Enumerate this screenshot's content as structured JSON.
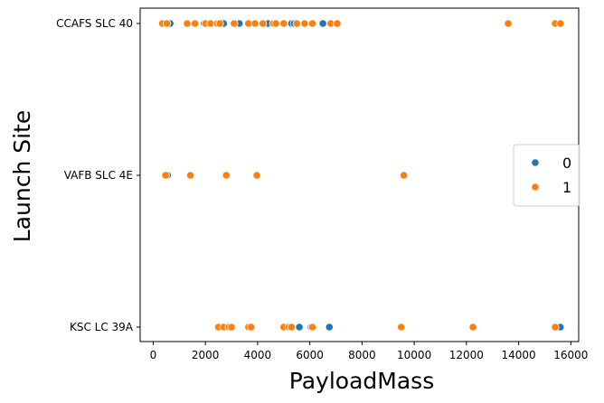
{
  "chart_data": {
    "type": "scatter",
    "title": "",
    "xlabel": "PayloadMass",
    "ylabel": "Launch Site",
    "xlim": [
      -500,
      16300
    ],
    "x_ticks": [
      0,
      2000,
      4000,
      6000,
      8000,
      10000,
      12000,
      14000,
      16000
    ],
    "categories": [
      "CCAFS SLC 40",
      "VAFB SLC 4E",
      "KSC LC 39A"
    ],
    "grid": false,
    "legend_placement": "center-right",
    "series": [
      {
        "name": "0",
        "color": "#1f77b4",
        "points": [
          {
            "x": 650,
            "y": "CCAFS SLC 40"
          },
          {
            "x": 1950,
            "y": "CCAFS SLC 40"
          },
          {
            "x": 2700,
            "y": "CCAFS SLC 40"
          },
          {
            "x": 3300,
            "y": "CCAFS SLC 40"
          },
          {
            "x": 4400,
            "y": "CCAFS SLC 40"
          },
          {
            "x": 5300,
            "y": "CCAFS SLC 40"
          },
          {
            "x": 5400,
            "y": "CCAFS SLC 40"
          },
          {
            "x": 6500,
            "y": "CCAFS SLC 40"
          },
          {
            "x": 550,
            "y": "VAFB SLC 4E"
          },
          {
            "x": 5600,
            "y": "KSC LC 39A"
          },
          {
            "x": 6050,
            "y": "KSC LC 39A"
          },
          {
            "x": 6750,
            "y": "KSC LC 39A"
          },
          {
            "x": 15600,
            "y": "KSC LC 39A"
          }
        ]
      },
      {
        "name": "1",
        "color": "#ff7f0e",
        "points": [
          {
            "x": 350,
            "y": "CCAFS SLC 40"
          },
          {
            "x": 525,
            "y": "CCAFS SLC 40"
          },
          {
            "x": 1300,
            "y": "CCAFS SLC 40"
          },
          {
            "x": 1600,
            "y": "CCAFS SLC 40"
          },
          {
            "x": 2000,
            "y": "CCAFS SLC 40"
          },
          {
            "x": 2200,
            "y": "CCAFS SLC 40"
          },
          {
            "x": 2450,
            "y": "CCAFS SLC 40"
          },
          {
            "x": 2550,
            "y": "CCAFS SLC 40"
          },
          {
            "x": 3100,
            "y": "CCAFS SLC 40"
          },
          {
            "x": 3650,
            "y": "CCAFS SLC 40"
          },
          {
            "x": 3900,
            "y": "CCAFS SLC 40"
          },
          {
            "x": 4200,
            "y": "CCAFS SLC 40"
          },
          {
            "x": 4600,
            "y": "CCAFS SLC 40"
          },
          {
            "x": 4700,
            "y": "CCAFS SLC 40"
          },
          {
            "x": 5000,
            "y": "CCAFS SLC 40"
          },
          {
            "x": 5500,
            "y": "CCAFS SLC 40"
          },
          {
            "x": 5800,
            "y": "CCAFS SLC 40"
          },
          {
            "x": 6100,
            "y": "CCAFS SLC 40"
          },
          {
            "x": 6800,
            "y": "CCAFS SLC 40"
          },
          {
            "x": 7050,
            "y": "CCAFS SLC 40"
          },
          {
            "x": 13600,
            "y": "CCAFS SLC 40"
          },
          {
            "x": 15400,
            "y": "CCAFS SLC 40"
          },
          {
            "x": 15600,
            "y": "CCAFS SLC 40"
          },
          {
            "x": 475,
            "y": "VAFB SLC 4E"
          },
          {
            "x": 1425,
            "y": "VAFB SLC 4E"
          },
          {
            "x": 2800,
            "y": "VAFB SLC 4E"
          },
          {
            "x": 3970,
            "y": "VAFB SLC 4E"
          },
          {
            "x": 9600,
            "y": "VAFB SLC 4E"
          },
          {
            "x": 2500,
            "y": "KSC LC 39A"
          },
          {
            "x": 2700,
            "y": "KSC LC 39A"
          },
          {
            "x": 2900,
            "y": "KSC LC 39A"
          },
          {
            "x": 3000,
            "y": "KSC LC 39A"
          },
          {
            "x": 3650,
            "y": "KSC LC 39A"
          },
          {
            "x": 3750,
            "y": "KSC LC 39A"
          },
          {
            "x": 5000,
            "y": "KSC LC 39A"
          },
          {
            "x": 5200,
            "y": "KSC LC 39A"
          },
          {
            "x": 5300,
            "y": "KSC LC 39A"
          },
          {
            "x": 6100,
            "y": "KSC LC 39A"
          },
          {
            "x": 9500,
            "y": "KSC LC 39A"
          },
          {
            "x": 12250,
            "y": "KSC LC 39A"
          },
          {
            "x": 15400,
            "y": "KSC LC 39A"
          }
        ]
      }
    ]
  }
}
